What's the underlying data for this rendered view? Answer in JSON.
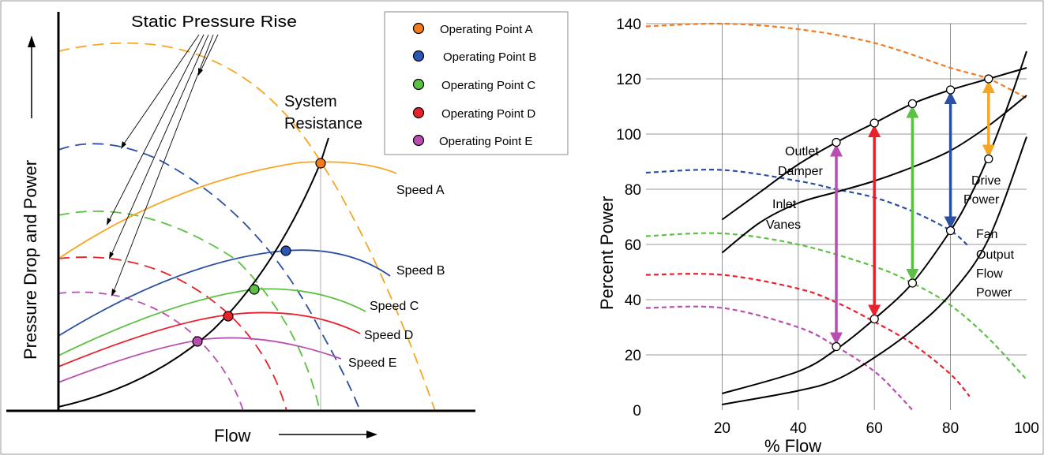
{
  "chart_data": [
    {
      "type": "line",
      "xlabel": "Flow",
      "ylabel": "Pressure Drop and Power",
      "annotations": {
        "static_pressure_rise": "Static Pressure Rise",
        "system_resistance_line1": "System",
        "system_resistance_line2": "Resistance"
      },
      "legend": {
        "placement": "top-right",
        "entries": [
          {
            "label": "Operating Point A",
            "color": "#f47a20"
          },
          {
            "label": "Operating Point B",
            "color": "#2b56b5"
          },
          {
            "label": "Operating Point C",
            "color": "#5cc043"
          },
          {
            "label": "Operating Point D",
            "color": "#e8212b"
          },
          {
            "label": "Operating Point E",
            "color": "#b84fb0"
          }
        ]
      },
      "speed_labels": [
        "Speed A",
        "Speed B",
        "Speed C",
        "Speed D",
        "Speed E"
      ],
      "colors": {
        "speed_a": "#f5a623",
        "speed_b": "#2b4fa3",
        "speed_c": "#5cc043",
        "speed_d": "#e8212b",
        "speed_e": "#b84fb0",
        "system": "#000000"
      }
    },
    {
      "type": "line",
      "xlabel": "% Flow",
      "ylabel": "Percent  Power",
      "xlim": [
        0,
        100
      ],
      "ylim": [
        0,
        140
      ],
      "xticks": [
        20,
        40,
        60,
        80,
        100
      ],
      "yticks": [
        0,
        20,
        40,
        60,
        80,
        100,
        120,
        140
      ],
      "grid": true,
      "annotations": {
        "outlet_damper_line1": "Outlet",
        "outlet_damper_line2": "Damper",
        "inlet_vanes_line1": "Inlet",
        "inlet_vanes_line2": "Vanes",
        "drive_power_line1": "Drive",
        "drive_power_line2": "Power",
        "fan_output_line1": "Fan",
        "fan_output_line2": "Output",
        "fan_output_line3": "Flow",
        "fan_output_line4": "Power"
      },
      "series": [
        {
          "color": "#f47a20",
          "style": "dashed",
          "x": [
            0,
            20,
            40,
            60,
            80,
            90,
            100
          ],
          "y": [
            139,
            140,
            138,
            133,
            124,
            120,
            113
          ]
        },
        {
          "color": "#2b4fa3",
          "style": "dashed",
          "x": [
            0,
            20,
            40,
            50,
            60,
            70,
            80,
            85
          ],
          "y": [
            86,
            87,
            83,
            80,
            77,
            72,
            65,
            59
          ]
        },
        {
          "color": "#5cc043",
          "style": "dashed",
          "x": [
            0,
            20,
            40,
            60,
            70,
            80,
            90,
            100
          ],
          "y": [
            63,
            64,
            60,
            52,
            46,
            38,
            26,
            11
          ]
        },
        {
          "color": "#e8212b",
          "style": "dashed",
          "x": [
            0,
            20,
            40,
            50,
            60,
            70,
            80,
            85
          ],
          "y": [
            49,
            49,
            44,
            39,
            32,
            24,
            13,
            5
          ]
        },
        {
          "color": "#b84fb0",
          "style": "dashed",
          "x": [
            0,
            20,
            40,
            50,
            60,
            66,
            70
          ],
          "y": [
            37,
            37,
            30,
            23,
            14,
            6,
            0
          ]
        },
        {
          "name": "Outlet Damper",
          "color": "#000000",
          "style": "solid",
          "x": [
            20,
            30,
            40,
            50,
            60,
            70,
            80,
            90,
            100
          ],
          "y": [
            69,
            79,
            89,
            97,
            104,
            111,
            116,
            120,
            124
          ]
        },
        {
          "name": "Inlet Vanes",
          "color": "#000000",
          "style": "solid",
          "x": [
            20,
            30,
            40,
            50,
            60,
            70,
            80,
            90,
            100
          ],
          "y": [
            57,
            68,
            75,
            79,
            83,
            88,
            94,
            103,
            114
          ]
        },
        {
          "name": "Drive Power",
          "color": "#000000",
          "style": "solid",
          "x": [
            20,
            40,
            50,
            60,
            70,
            80,
            85,
            90,
            95,
            100
          ],
          "y": [
            6,
            14,
            22,
            33,
            46,
            65,
            77,
            92,
            110,
            130
          ]
        },
        {
          "name": "Fan Output Flow Power",
          "color": "#000000",
          "style": "solid",
          "x": [
            20,
            40,
            50,
            60,
            70,
            80,
            90,
            100
          ],
          "y": [
            2,
            7,
            11,
            19,
            29,
            42,
            62,
            99
          ]
        }
      ],
      "arrows": [
        {
          "color": "#b84fb0",
          "x": 50,
          "y_from": 97,
          "y_to": 23
        },
        {
          "color": "#e8212b",
          "x": 60,
          "y_from": 104,
          "y_to": 33
        },
        {
          "color": "#5cc043",
          "x": 70,
          "y_from": 111,
          "y_to": 46
        },
        {
          "color": "#2b4fa3",
          "x": 80,
          "y_from": 116,
          "y_to": 65
        },
        {
          "color": "#f5a623",
          "x": 90,
          "y_from": 120,
          "y_to": 91
        }
      ],
      "markers": [
        {
          "x": 50,
          "y": 97
        },
        {
          "x": 60,
          "y": 104
        },
        {
          "x": 70,
          "y": 111
        },
        {
          "x": 80,
          "y": 116
        },
        {
          "x": 90,
          "y": 120
        },
        {
          "x": 50,
          "y": 23
        },
        {
          "x": 60,
          "y": 33
        },
        {
          "x": 70,
          "y": 46
        },
        {
          "x": 80,
          "y": 65
        },
        {
          "x": 90,
          "y": 91
        }
      ]
    }
  ]
}
